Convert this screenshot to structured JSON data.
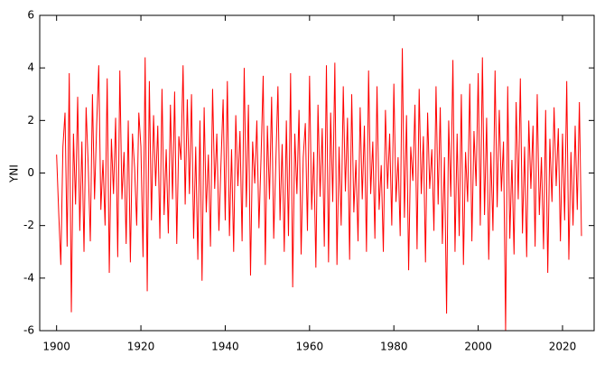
{
  "chart_data": {
    "type": "line",
    "y_label": "YNI",
    "x": [
      1900,
      1900.5,
      1901,
      1901.5,
      1902,
      1902.5,
      1903,
      1903.5,
      1904,
      1904.5,
      1905,
      1905.5,
      1906,
      1906.5,
      1907,
      1907.5,
      1908,
      1908.5,
      1909,
      1909.5,
      1910,
      1910.5,
      1911,
      1911.5,
      1912,
      1912.5,
      1913,
      1913.5,
      1914,
      1914.5,
      1915,
      1915.5,
      1916,
      1916.5,
      1917,
      1917.5,
      1918,
      1918.5,
      1919,
      1919.5,
      1920,
      1920.5,
      1921,
      1921.5,
      1922,
      1922.5,
      1923,
      1923.5,
      1924,
      1924.5,
      1925,
      1925.5,
      1926,
      1926.5,
      1927,
      1927.5,
      1928,
      1928.5,
      1929,
      1929.5,
      1930,
      1930.5,
      1931,
      1931.5,
      1932,
      1932.5,
      1933,
      1933.5,
      1934,
      1934.5,
      1935,
      1935.5,
      1936,
      1936.5,
      1937,
      1937.5,
      1938,
      1938.5,
      1939,
      1939.5,
      1940,
      1940.5,
      1941,
      1941.5,
      1942,
      1942.5,
      1943,
      1943.5,
      1944,
      1944.5,
      1945,
      1945.5,
      1946,
      1946.5,
      1947,
      1947.5,
      1948,
      1948.5,
      1949,
      1949.5,
      1950,
      1950.5,
      1951,
      1951.5,
      1952,
      1952.5,
      1953,
      1953.5,
      1954,
      1954.5,
      1955,
      1955.5,
      1956,
      1956.5,
      1957,
      1957.5,
      1958,
      1958.5,
      1959,
      1959.5,
      1960,
      1960.5,
      1961,
      1961.5,
      1962,
      1962.5,
      1963,
      1963.5,
      1964,
      1964.5,
      1965,
      1965.5,
      1966,
      1966.5,
      1967,
      1967.5,
      1968,
      1968.5,
      1969,
      1969.5,
      1970,
      1970.5,
      1971,
      1971.5,
      1972,
      1972.5,
      1973,
      1973.5,
      1974,
      1974.5,
      1975,
      1975.5,
      1976,
      1976.5,
      1977,
      1977.5,
      1978,
      1978.5,
      1979,
      1979.5,
      1980,
      1980.5,
      1981,
      1981.5,
      1982,
      1982.5,
      1983,
      1983.5,
      1984,
      1984.5,
      1985,
      1985.5,
      1986,
      1986.5,
      1987,
      1987.5,
      1988,
      1988.5,
      1989,
      1989.5,
      1990,
      1990.5,
      1991,
      1991.5,
      1992,
      1992.5,
      1993,
      1993.5,
      1994,
      1994.5,
      1995,
      1995.5,
      1996,
      1996.5,
      1997,
      1997.5,
      1998,
      1998.5,
      1999,
      1999.5,
      2000,
      2000.5,
      2001,
      2001.5,
      2002,
      2002.5,
      2003,
      2003.5,
      2004,
      2004.5,
      2005,
      2005.5,
      2006,
      2006.5,
      2007,
      2007.5,
      2008,
      2008.5,
      2009,
      2009.5,
      2010,
      2010.5,
      2011,
      2011.5,
      2012,
      2012.5,
      2013,
      2013.5,
      2014,
      2014.5,
      2015,
      2015.5,
      2016,
      2016.5,
      2017,
      2017.5,
      2018,
      2018.5,
      2019,
      2019.5,
      2020,
      2020.5,
      2021,
      2021.5,
      2022,
      2022.5,
      2023,
      2023.5,
      2024,
      2024.5
    ],
    "series": [
      {
        "color": "#ff0000",
        "values": [
          0.7,
          -1.5,
          -3.5,
          1.0,
          2.3,
          -2.8,
          3.8,
          -5.3,
          1.5,
          -1.2,
          2.9,
          -2.2,
          1.2,
          -3.0,
          2.5,
          0.3,
          -2.6,
          3.0,
          -1.0,
          1.8,
          4.1,
          -1.4,
          0.5,
          -2.0,
          3.6,
          -3.8,
          1.3,
          -0.8,
          2.1,
          -3.2,
          3.9,
          -1.0,
          0.8,
          -2.7,
          2.0,
          -3.4,
          1.5,
          0.2,
          -2.0,
          2.3,
          1.0,
          -3.2,
          4.4,
          -4.5,
          3.5,
          -1.8,
          2.2,
          -0.5,
          1.8,
          -2.5,
          3.2,
          -1.6,
          0.9,
          -2.3,
          2.6,
          -1.0,
          3.1,
          -2.7,
          1.4,
          0.5,
          4.1,
          -1.2,
          2.8,
          -0.8,
          3.0,
          -2.5,
          1.0,
          -3.3,
          2.0,
          -4.1,
          2.5,
          -1.5,
          0.7,
          -2.8,
          3.2,
          -0.6,
          1.5,
          -2.2,
          0.4,
          2.8,
          -1.8,
          3.5,
          -2.4,
          0.9,
          -3.0,
          2.2,
          -0.5,
          1.6,
          -2.6,
          4.0,
          -1.3,
          2.6,
          -3.9,
          1.2,
          -0.4,
          2.0,
          -2.1,
          0.6,
          3.7,
          -3.5,
          1.8,
          -1.0,
          2.9,
          -2.5,
          0.4,
          3.3,
          -1.8,
          1.1,
          -3.0,
          2.0,
          -2.4,
          3.8,
          -4.35,
          1.5,
          -0.8,
          2.4,
          -3.1,
          0.6,
          1.9,
          -2.2,
          3.7,
          -1.4,
          0.8,
          -3.6,
          2.6,
          -0.9,
          1.7,
          -2.8,
          4.1,
          -3.4,
          2.3,
          -1.1,
          4.2,
          -3.5,
          1.0,
          -2.0,
          3.3,
          -0.7,
          2.1,
          -3.3,
          3.0,
          -1.5,
          0.5,
          -2.6,
          2.5,
          -1.0,
          1.8,
          -3.0,
          3.9,
          -0.8,
          1.2,
          -2.5,
          3.3,
          -1.4,
          0.3,
          -3.0,
          2.4,
          -0.6,
          1.5,
          -2.0,
          3.4,
          -1.1,
          0.6,
          -2.4,
          4.75,
          -1.7,
          2.2,
          -3.7,
          1.0,
          -0.3,
          2.6,
          -2.9,
          3.2,
          -0.8,
          1.4,
          -3.4,
          2.3,
          -0.6,
          0.9,
          -2.2,
          3.3,
          -1.2,
          2.5,
          -2.7,
          0.6,
          -5.35,
          2.0,
          -0.9,
          4.3,
          -3.0,
          1.5,
          -2.4,
          3.0,
          -3.5,
          0.8,
          -1.1,
          3.4,
          -2.6,
          1.6,
          -0.5,
          3.8,
          -2.0,
          4.4,
          -1.6,
          2.1,
          -3.3,
          0.8,
          -2.2,
          3.9,
          -1.3,
          2.4,
          -0.7,
          1.2,
          -6.0,
          3.3,
          -2.5,
          0.5,
          -3.1,
          2.7,
          -1.0,
          3.6,
          -2.3,
          1.0,
          -3.2,
          2.0,
          -0.6,
          1.8,
          -2.8,
          3.0,
          -1.6,
          0.6,
          -2.9,
          2.4,
          -3.8,
          1.3,
          -1.1,
          2.5,
          -0.5,
          1.7,
          -2.6,
          1.5,
          -1.8,
          3.5,
          -3.3,
          0.8,
          -2.0,
          1.8,
          -1.4,
          2.7,
          -2.4
        ]
      }
    ],
    "xlim": [
      1896,
      2027.5
    ],
    "ylim": [
      -6,
      6
    ],
    "xticks": [
      1900,
      1920,
      1940,
      1960,
      1980,
      2000,
      2020
    ],
    "yticks": [
      -6,
      -4,
      -2,
      0,
      2,
      4,
      6
    ]
  }
}
